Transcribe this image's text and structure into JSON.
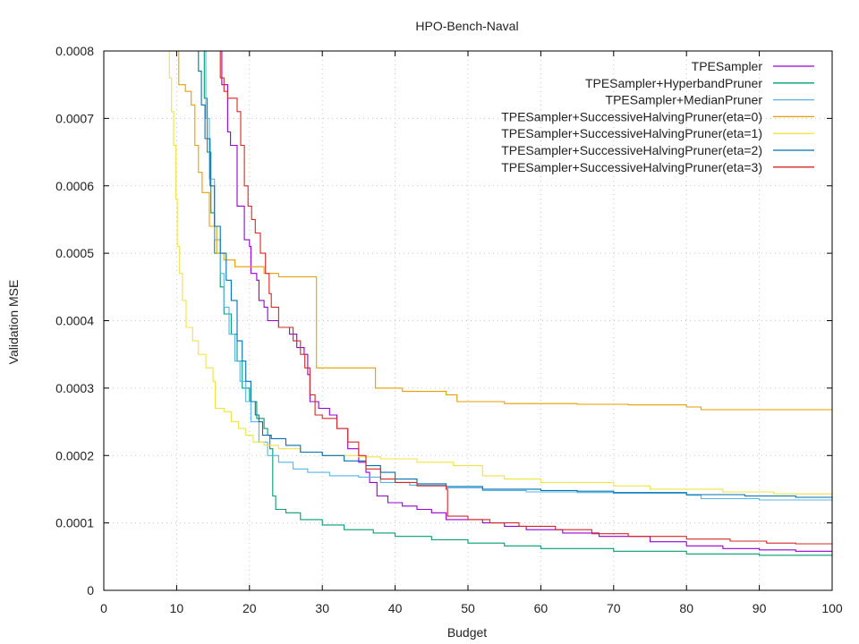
{
  "chart_data": {
    "type": "line",
    "title": "HPO-Bench-Naval",
    "xlabel": "Budget",
    "ylabel": "Validation MSE",
    "xlim": [
      0,
      100
    ],
    "ylim": [
      0,
      0.0008
    ],
    "x_ticks": [
      "0",
      "10",
      "20",
      "30",
      "40",
      "50",
      "60",
      "70",
      "80",
      "90",
      "100"
    ],
    "y_ticks": [
      "0",
      "0.0001",
      "0.0002",
      "0.0003",
      "0.0004",
      "0.0005",
      "0.0006",
      "0.0007",
      "0.0008"
    ],
    "grid": true,
    "legend_position": "top-right",
    "series": [
      {
        "name": "TPESampler",
        "color": "#9400d3",
        "points": [
          [
            16.0,
            0.0008
          ],
          [
            16.2,
            0.00075
          ],
          [
            17,
            0.00068
          ],
          [
            17.4,
            0.00066
          ],
          [
            18.1,
            0.00066
          ],
          [
            18.3,
            0.00057
          ],
          [
            19.1,
            0.00057
          ],
          [
            19.3,
            0.00052
          ],
          [
            20,
            0.00051
          ],
          [
            20.2,
            0.00047
          ],
          [
            21,
            0.00046
          ],
          [
            21.3,
            0.00043
          ],
          [
            22,
            0.00042
          ],
          [
            22.5,
            0.0004
          ],
          [
            24,
            0.00039
          ],
          [
            25.5,
            0.00038
          ],
          [
            26.5,
            0.00036
          ],
          [
            27.5,
            0.00035
          ],
          [
            28,
            0.00032
          ],
          [
            28.3,
            0.00028
          ],
          [
            29.5,
            0.00027
          ],
          [
            31,
            0.00026
          ],
          [
            32,
            0.00024
          ],
          [
            33.5,
            0.00021
          ],
          [
            35,
            0.00019
          ],
          [
            36,
            0.000175
          ],
          [
            36.5,
            0.00016
          ],
          [
            37.5,
            0.00014
          ],
          [
            39,
            0.00013
          ],
          [
            41,
            0.000125
          ],
          [
            43,
            0.00012
          ],
          [
            45,
            0.000115
          ],
          [
            47,
            0.000105
          ],
          [
            52,
            0.0001
          ],
          [
            55,
            9.5e-05
          ],
          [
            58,
            9e-05
          ],
          [
            63,
            8.5e-05
          ],
          [
            68,
            8e-05
          ],
          [
            75,
            7.2e-05
          ],
          [
            80,
            6.6e-05
          ],
          [
            85,
            6.2e-05
          ],
          [
            90,
            6e-05
          ],
          [
            95,
            5.8e-05
          ],
          [
            100,
            5.7e-05
          ]
        ]
      },
      {
        "name": "TPESampler+HyperbandPruner",
        "color": "#009e73",
        "points": [
          [
            13.5,
            0.0008
          ],
          [
            13.8,
            0.00073
          ],
          [
            14.2,
            0.00065
          ],
          [
            14.7,
            0.00056
          ],
          [
            15.2,
            0.0005
          ],
          [
            16,
            0.00045
          ],
          [
            16.5,
            0.00041
          ],
          [
            17.5,
            0.00038
          ],
          [
            18.3,
            0.00034
          ],
          [
            19,
            0.0003
          ],
          [
            20,
            0.00028
          ],
          [
            21,
            0.000255
          ],
          [
            22,
            0.00024
          ],
          [
            22.5,
            0.00023
          ],
          [
            22.8,
            0.00021
          ],
          [
            23.2,
            0.00014
          ],
          [
            23.6,
            0.00012
          ],
          [
            25,
            0.000115
          ],
          [
            27,
            0.000105
          ],
          [
            30,
            9.7e-05
          ],
          [
            33,
            9e-05
          ],
          [
            37,
            8.5e-05
          ],
          [
            40,
            8e-05
          ],
          [
            45,
            7.5e-05
          ],
          [
            50,
            7e-05
          ],
          [
            55,
            6.6e-05
          ],
          [
            60,
            6.2e-05
          ],
          [
            70,
            5.8e-05
          ],
          [
            80,
            5.4e-05
          ],
          [
            90,
            5.2e-05
          ],
          [
            100,
            5e-05
          ]
        ]
      },
      {
        "name": "TPESampler+MedianPruner",
        "color": "#56b4e9",
        "points": [
          [
            13.5,
            0.0008
          ],
          [
            14,
            0.0007
          ],
          [
            14.5,
            0.00061
          ],
          [
            15.2,
            0.00052
          ],
          [
            16,
            0.00047
          ],
          [
            16.5,
            0.00042
          ],
          [
            17.2,
            0.00038
          ],
          [
            18,
            0.00034
          ],
          [
            18.7,
            0.00031
          ],
          [
            19.5,
            0.00028
          ],
          [
            20.2,
            0.00025
          ],
          [
            21.3,
            0.00022
          ],
          [
            22.5,
            0.0002
          ],
          [
            24,
            0.00019
          ],
          [
            26,
            0.00018
          ],
          [
            28,
            0.000175
          ],
          [
            31,
            0.00017
          ],
          [
            35,
            0.000168
          ],
          [
            38,
            0.00016
          ],
          [
            42,
            0.000156
          ],
          [
            47,
            0.000152
          ],
          [
            52,
            0.000148
          ],
          [
            58,
            0.000146
          ],
          [
            65,
            0.000145
          ],
          [
            70,
            0.000144
          ],
          [
            80,
            0.000141
          ],
          [
            82,
            0.000136
          ],
          [
            90,
            0.000134
          ],
          [
            100,
            0.000132
          ]
        ]
      },
      {
        "name": "TPESampler+SuccessiveHalvingPruner(eta=0)",
        "color": "#e69f00",
        "points": [
          [
            10,
            0.0008
          ],
          [
            10.3,
            0.00075
          ],
          [
            11.2,
            0.00074
          ],
          [
            12,
            0.00072
          ],
          [
            12.5,
            0.00066
          ],
          [
            13,
            0.00062
          ],
          [
            13.5,
            0.00059
          ],
          [
            14.5,
            0.00054
          ],
          [
            15.5,
            0.0005
          ],
          [
            16.5,
            0.00049
          ],
          [
            18,
            0.00048
          ],
          [
            20,
            0.00048
          ],
          [
            22,
            0.00047
          ],
          [
            24,
            0.000465
          ],
          [
            29,
            0.000465
          ],
          [
            29.2,
            0.00033
          ],
          [
            37,
            0.00033
          ],
          [
            37.3,
            0.0003
          ],
          [
            40,
            0.0003
          ],
          [
            41,
            0.000295
          ],
          [
            47,
            0.00029
          ],
          [
            48.5,
            0.00028
          ],
          [
            55,
            0.000277
          ],
          [
            65,
            0.000276
          ],
          [
            72,
            0.000275
          ],
          [
            80,
            0.000272
          ],
          [
            82,
            0.000268
          ],
          [
            90,
            0.000268
          ],
          [
            100,
            0.000267
          ]
        ]
      },
      {
        "name": "TPESampler+SuccessiveHalvingPruner(eta=1)",
        "color": "#f0e442",
        "points": [
          [
            8.5,
            0.0008
          ],
          [
            9,
            0.00076
          ],
          [
            9.3,
            0.00071
          ],
          [
            9.6,
            0.00066
          ],
          [
            9.9,
            0.00058
          ],
          [
            10.1,
            0.00051
          ],
          [
            10.4,
            0.00047
          ],
          [
            10.8,
            0.00043
          ],
          [
            11.3,
            0.00039
          ],
          [
            12.2,
            0.00037
          ],
          [
            13,
            0.00035
          ],
          [
            14,
            0.00033
          ],
          [
            15,
            0.00031
          ],
          [
            15.3,
            0.00027
          ],
          [
            16.5,
            0.000265
          ],
          [
            17.5,
            0.00025
          ],
          [
            18.5,
            0.00024
          ],
          [
            19.5,
            0.00023
          ],
          [
            20.5,
            0.00022
          ],
          [
            22,
            0.000215
          ],
          [
            24,
            0.00021
          ],
          [
            27,
            0.000205
          ],
          [
            30,
            0.0002
          ],
          [
            35,
            0.000198
          ],
          [
            38,
            0.000195
          ],
          [
            43,
            0.00019
          ],
          [
            48,
            0.000185
          ],
          [
            52,
            0.00017
          ],
          [
            55,
            0.000165
          ],
          [
            60,
            0.00016
          ],
          [
            70,
            0.000155
          ],
          [
            75,
            0.00015
          ],
          [
            85,
            0.000146
          ],
          [
            92,
            0.000143
          ],
          [
            100,
            0.000142
          ]
        ]
      },
      {
        "name": "TPESampler+SuccessiveHalvingPruner(eta=2)",
        "color": "#0072b2",
        "points": [
          [
            12.5,
            0.0008
          ],
          [
            13,
            0.00077
          ],
          [
            13.4,
            0.00072
          ],
          [
            13.9,
            0.00067
          ],
          [
            14.6,
            0.0006
          ],
          [
            15.2,
            0.00054
          ],
          [
            16,
            0.0005
          ],
          [
            16.8,
            0.00046
          ],
          [
            17.5,
            0.00043
          ],
          [
            18.3,
            0.00037
          ],
          [
            19,
            0.00034
          ],
          [
            19.5,
            0.00031
          ],
          [
            20.2,
            0.00028
          ],
          [
            20.8,
            0.00026
          ],
          [
            21.3,
            0.00025
          ],
          [
            21.8,
            0.00023
          ],
          [
            23,
            0.000225
          ],
          [
            25,
            0.000215
          ],
          [
            27,
            0.000205
          ],
          [
            30,
            0.0002
          ],
          [
            33,
            0.000192
          ],
          [
            36,
            0.000185
          ],
          [
            38,
            0.000175
          ],
          [
            40,
            0.000165
          ],
          [
            43,
            0.000158
          ],
          [
            47,
            0.000154
          ],
          [
            52,
            0.00015
          ],
          [
            60,
            0.000148
          ],
          [
            65,
            0.000147
          ],
          [
            70,
            0.000145
          ],
          [
            80,
            0.000142
          ],
          [
            88,
            0.00014
          ],
          [
            95,
            0.000138
          ],
          [
            100,
            0.000136
          ]
        ]
      },
      {
        "name": "TPESampler+SuccessiveHalvingPruner(eta=3)",
        "color": "#d62728",
        "points": [
          [
            15.5,
            0.0008
          ],
          [
            16,
            0.00076
          ],
          [
            16.5,
            0.00074
          ],
          [
            17,
            0.00073
          ],
          [
            18.3,
            0.00071
          ],
          [
            18.8,
            0.00066
          ],
          [
            19.3,
            0.0006
          ],
          [
            19.8,
            0.00057
          ],
          [
            20.3,
            0.00055
          ],
          [
            20.8,
            0.00053
          ],
          [
            21.5,
            0.0005
          ],
          [
            22.2,
            0.00047
          ],
          [
            22.7,
            0.00044
          ],
          [
            23,
            0.00042
          ],
          [
            24,
            0.00039
          ],
          [
            26,
            0.00037
          ],
          [
            27,
            0.00035
          ],
          [
            27.6,
            0.00033
          ],
          [
            28.3,
            0.00029
          ],
          [
            29,
            0.00026
          ],
          [
            30,
            0.000255
          ],
          [
            32,
            0.00024
          ],
          [
            33.5,
            0.00022
          ],
          [
            35,
            0.0002
          ],
          [
            36,
            0.00018
          ],
          [
            38,
            0.000165
          ],
          [
            40,
            0.00016
          ],
          [
            43,
            0.000155
          ],
          [
            47,
            0.00015
          ],
          [
            47.2,
            0.00011
          ],
          [
            50,
            0.000105
          ],
          [
            53,
            0.0001
          ],
          [
            57,
            9.5e-05
          ],
          [
            62,
            9e-05
          ],
          [
            67,
            8.4e-05
          ],
          [
            72,
            8e-05
          ],
          [
            80,
            7.6e-05
          ],
          [
            86,
            7.3e-05
          ],
          [
            91,
            7e-05
          ],
          [
            95,
            6.9e-05
          ],
          [
            100,
            6.8e-05
          ]
        ]
      }
    ]
  }
}
